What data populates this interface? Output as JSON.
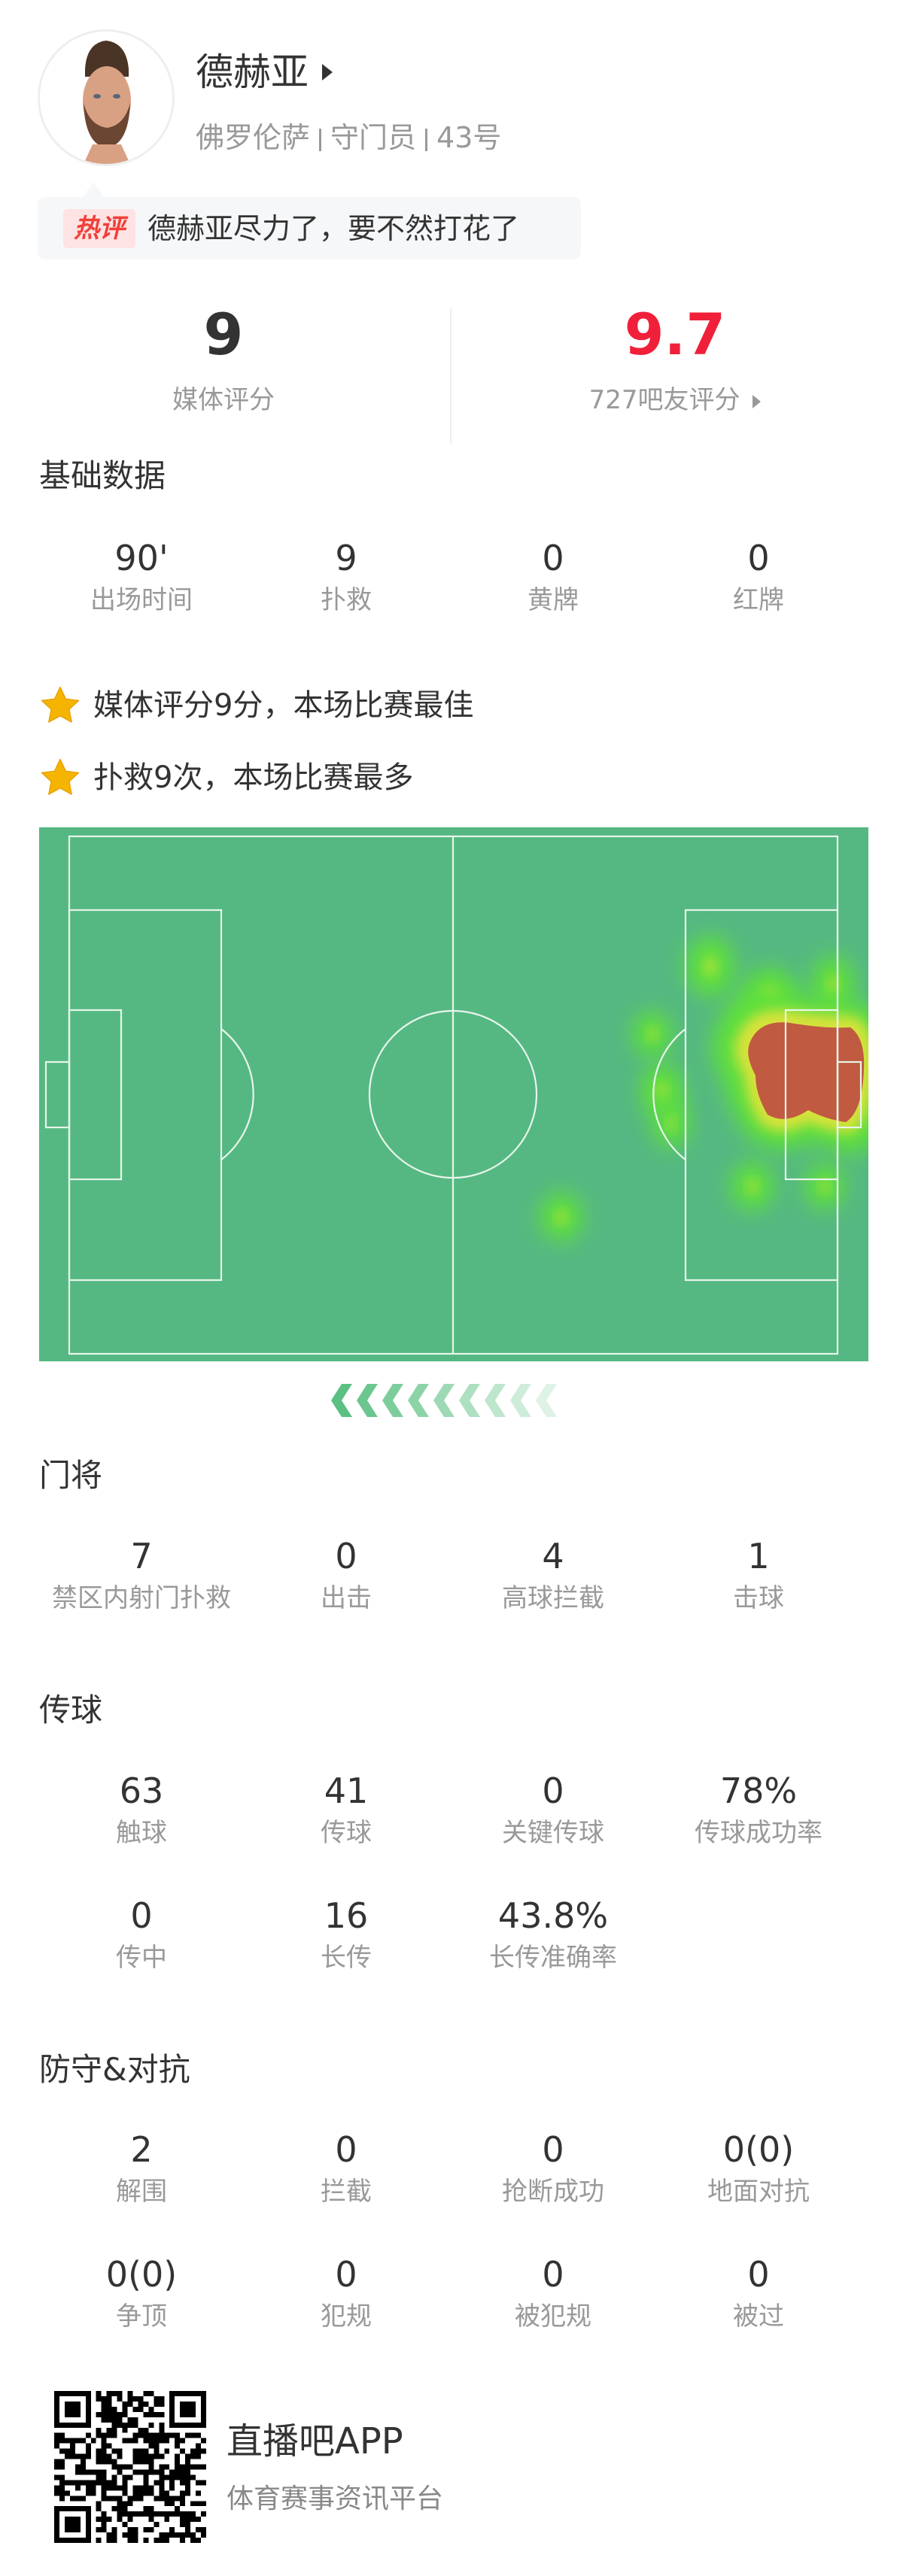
{
  "player": {
    "name": "德赫亚",
    "club": "佛罗伦萨",
    "position": "守门员",
    "number": "43号"
  },
  "hot_comment": {
    "badge": "热评",
    "text": "德赫亚尽力了，要不然打花了"
  },
  "ratings": {
    "media_score": "9",
    "media_label": "媒体评分",
    "fan_score": "9.7",
    "fan_label": "727吧友评分",
    "fan_color": "#f0203a"
  },
  "basic": {
    "title": "基础数据",
    "stats": [
      {
        "value": "90'",
        "label": "出场时间"
      },
      {
        "value": "9",
        "label": "扑救"
      },
      {
        "value": "0",
        "label": "黄牌"
      },
      {
        "value": "0",
        "label": "红牌"
      }
    ]
  },
  "highlights": [
    {
      "icon": "star-icon",
      "text": "媒体评分9分，本场比赛最佳"
    },
    {
      "icon": "star-icon",
      "text": "扑救9次，本场比赛最多"
    }
  ],
  "heatmap": {
    "pitch_color": "#55b882",
    "attack_direction": "left"
  },
  "goalkeeping": {
    "title": "门将",
    "stats": [
      {
        "value": "7",
        "label": "禁区内射门扑救"
      },
      {
        "value": "0",
        "label": "出击"
      },
      {
        "value": "4",
        "label": "高球拦截"
      },
      {
        "value": "1",
        "label": "击球"
      }
    ]
  },
  "passing": {
    "title": "传球",
    "stats": [
      {
        "value": "63",
        "label": "触球"
      },
      {
        "value": "41",
        "label": "传球"
      },
      {
        "value": "0",
        "label": "关键传球"
      },
      {
        "value": "78%",
        "label": "传球成功率"
      },
      {
        "value": "0",
        "label": "传中"
      },
      {
        "value": "16",
        "label": "长传"
      },
      {
        "value": "43.8%",
        "label": "长传准确率"
      }
    ]
  },
  "defense": {
    "title": "防守&对抗",
    "stats": [
      {
        "value": "2",
        "label": "解围"
      },
      {
        "value": "0",
        "label": "拦截"
      },
      {
        "value": "0",
        "label": "抢断成功"
      },
      {
        "value": "0(0)",
        "label": "地面对抗"
      },
      {
        "value": "0(0)",
        "label": "争顶"
      },
      {
        "value": "0",
        "label": "犯规"
      },
      {
        "value": "0",
        "label": "被犯规"
      },
      {
        "value": "0",
        "label": "被过"
      }
    ]
  },
  "footer": {
    "app_name": "直播吧APP",
    "tagline": "体育赛事资讯平台"
  }
}
